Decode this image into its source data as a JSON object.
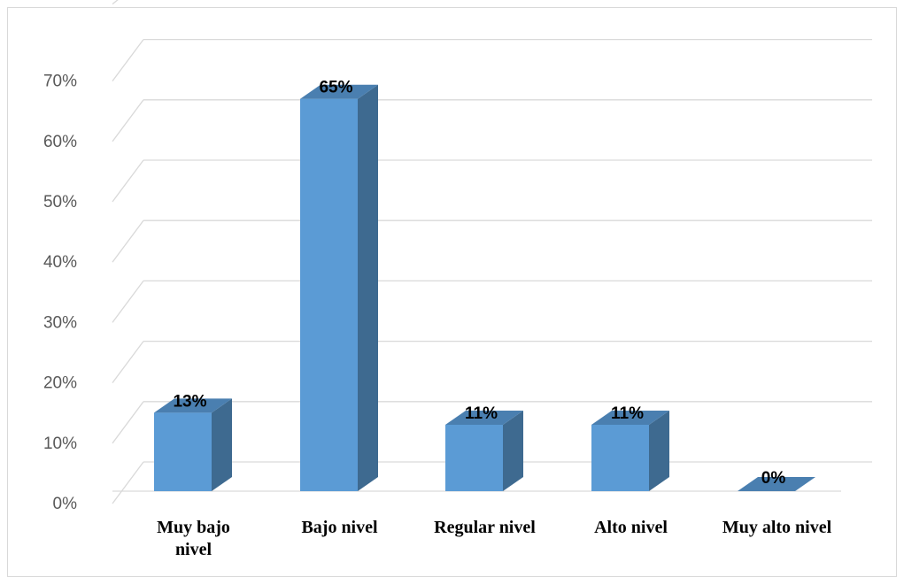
{
  "chart_data": {
    "type": "bar",
    "style": "3d-column",
    "categories": [
      "Muy bajo nivel",
      "Bajo nivel",
      "Regular nivel",
      "Alto nivel",
      "Muy alto nivel"
    ],
    "category_lines": [
      [
        "Muy bajo",
        "nivel"
      ],
      [
        "Bajo nivel"
      ],
      [
        "Regular nivel"
      ],
      [
        "Alto nivel"
      ],
      [
        "Muy alto nivel"
      ]
    ],
    "values": [
      13,
      65,
      11,
      11,
      0
    ],
    "data_labels": [
      "13%",
      "65%",
      "11%",
      "11%",
      "0%"
    ],
    "y_ticks": [
      "0%",
      "10%",
      "20%",
      "30%",
      "40%",
      "50%",
      "60%",
      "70%"
    ],
    "ylim": [
      0,
      70
    ],
    "grid": true,
    "legend": "none",
    "title": "",
    "xlabel": "",
    "ylabel": "",
    "colors": {
      "bar_front": "#5b9bd5",
      "bar_side": "#3e6a90",
      "bar_top": "#4a7fb0",
      "grid": "#d9d9d9",
      "tick_text": "#595959"
    }
  }
}
